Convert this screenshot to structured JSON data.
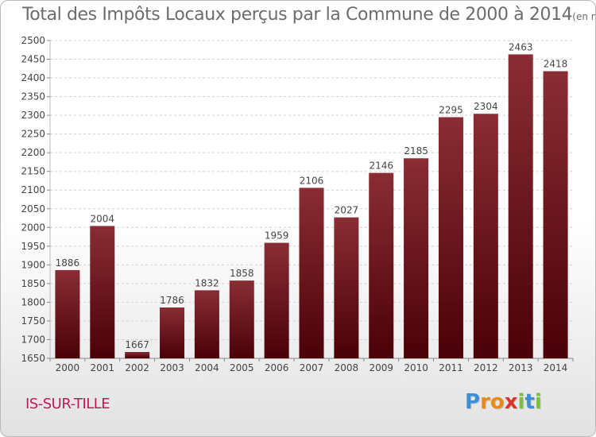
{
  "header": {
    "title": "Total des Impôts Locaux perçus par la Commune de 2000 à 2014",
    "subtitle": "(en milliers d'€)"
  },
  "commune": "IS-SUR-TILLE",
  "logo": {
    "letters": [
      "P",
      "r",
      "o",
      "x",
      "i",
      "t",
      "i"
    ],
    "colors": [
      "#3b8fd4",
      "#e8891c",
      "#e8891c",
      "#d9342b",
      "#7cbf3a",
      "#3b8fd4",
      "#7cbf3a"
    ]
  },
  "colors": {
    "bar_top": "#8a2d35",
    "bar_bottom": "#4a0008",
    "grid": "#d0d0d0",
    "axis_text": "#444444",
    "title_text": "#6c6c6c",
    "commune_text": "#c2185b"
  },
  "chart_data": {
    "type": "bar",
    "title": "Total des Impôts Locaux perçus par la Commune de 2000 à 2014",
    "subtitle": "(en milliers d'€)",
    "xlabel": "",
    "ylabel": "",
    "categories": [
      "2000",
      "2001",
      "2002",
      "2003",
      "2004",
      "2005",
      "2006",
      "2007",
      "2008",
      "2009",
      "2010",
      "2011",
      "2012",
      "2013",
      "2014"
    ],
    "values": [
      1886,
      2004,
      1667,
      1786,
      1832,
      1858,
      1959,
      2106,
      2027,
      2146,
      2185,
      2295,
      2304,
      2463,
      2418
    ],
    "value_labels": [
      "1886",
      "2004",
      "1667",
      "1786",
      "1832",
      "1858",
      "1959",
      "2106",
      "2027",
      "2146",
      "2185",
      "2295",
      "2304",
      "2463",
      "2418"
    ],
    "ylim": [
      1650,
      2500
    ],
    "yticks": [
      1650,
      1700,
      1750,
      1800,
      1850,
      1900,
      1950,
      2000,
      2050,
      2100,
      2150,
      2200,
      2250,
      2300,
      2350,
      2400,
      2450,
      2500
    ],
    "ytick_labels": [
      "1650",
      "1700",
      "1750",
      "1800",
      "1850",
      "1900",
      "1950",
      "2000",
      "2050",
      "2100",
      "2150",
      "2200",
      "2250",
      "2300",
      "2350",
      "2400",
      "2450",
      "2500"
    ],
    "grid": true,
    "legend": "none"
  }
}
